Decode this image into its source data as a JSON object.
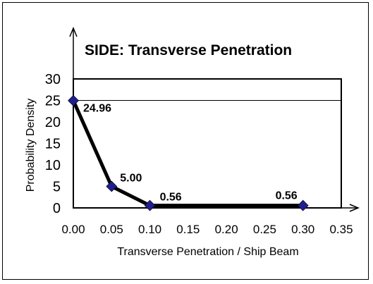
{
  "chart_data": {
    "type": "line",
    "title": "SIDE: Transverse Penetration",
    "xlabel": "Transverse Penetration / Ship Beam",
    "ylabel": "Probability Density",
    "x_ticks": [
      "0.00",
      "0.05",
      "0.10",
      "0.15",
      "0.20",
      "0.25",
      "0.30",
      "0.35"
    ],
    "y_ticks": [
      "0",
      "5",
      "10",
      "15",
      "20",
      "25",
      "30"
    ],
    "xlim": [
      0,
      0.35
    ],
    "ylim": [
      0,
      30
    ],
    "series": [
      {
        "x": [
          0.0,
          0.05,
          0.1,
          0.3
        ],
        "values": [
          24.96,
          5.0,
          0.56,
          0.56
        ],
        "labels": [
          "24.96",
          "5.00",
          "0.56",
          "0.56"
        ]
      }
    ],
    "reference_line_y": 25,
    "colors": {
      "marker": "#1f1f8f",
      "line": "#000000"
    }
  }
}
